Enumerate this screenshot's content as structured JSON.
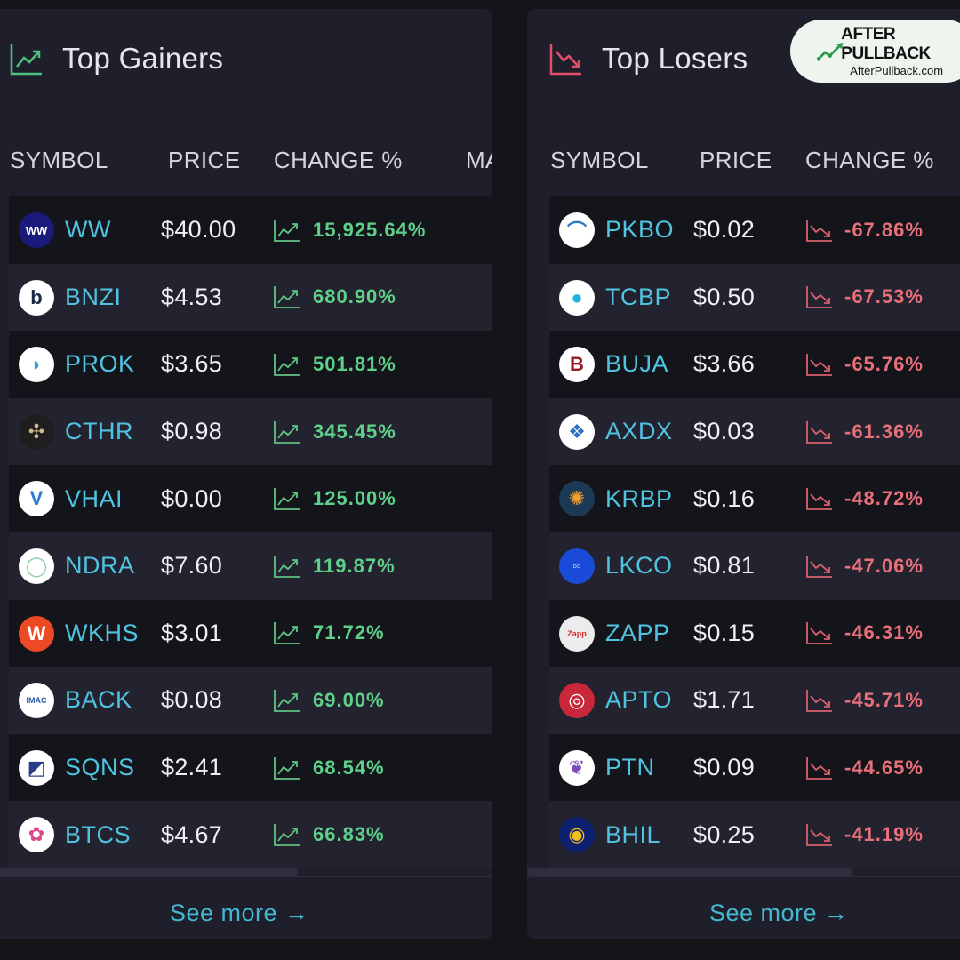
{
  "gainers": {
    "title": "Top Gainers",
    "columns": {
      "symbol": "SYMBOL",
      "price": "PRICE",
      "change": "CHANGE %",
      "market": "MA"
    },
    "rows": [
      {
        "symbol": "WW",
        "price": "$40.00",
        "change": "15,925.64%",
        "logo": "WW",
        "logo_bg": "#1a1a7a",
        "logo_fg": "#ffffff"
      },
      {
        "symbol": "BNZI",
        "price": "$4.53",
        "change": "680.90%",
        "logo": "b",
        "logo_bg": "#ffffff",
        "logo_fg": "#1c2a4a"
      },
      {
        "symbol": "PROK",
        "price": "$3.65",
        "change": "501.81%",
        "logo": "◗",
        "logo_bg": "#ffffff",
        "logo_fg": "#3a9bd5"
      },
      {
        "symbol": "CTHR",
        "price": "$0.98",
        "change": "345.45%",
        "logo": "✣",
        "logo_bg": "#1e1e1e",
        "logo_fg": "#c9b88a"
      },
      {
        "symbol": "VHAI",
        "price": "$0.00",
        "change": "125.00%",
        "logo": "V",
        "logo_bg": "#ffffff",
        "logo_fg": "#2a7fd4"
      },
      {
        "symbol": "NDRA",
        "price": "$7.60",
        "change": "119.87%",
        "logo": "◯",
        "logo_bg": "#ffffff",
        "logo_fg": "#8fcfa8"
      },
      {
        "symbol": "WKHS",
        "price": "$3.01",
        "change": "71.72%",
        "logo": "W",
        "logo_bg": "#ec4a25",
        "logo_fg": "#ffffff"
      },
      {
        "symbol": "BACK",
        "price": "$0.08",
        "change": "69.00%",
        "logo": "IMAC",
        "logo_bg": "#ffffff",
        "logo_fg": "#2a5aa8"
      },
      {
        "symbol": "SQNS",
        "price": "$2.41",
        "change": "68.54%",
        "logo": "◩",
        "logo_bg": "#ffffff",
        "logo_fg": "#2a3d8a"
      },
      {
        "symbol": "BTCS",
        "price": "$4.67",
        "change": "66.83%",
        "logo": "✿",
        "logo_bg": "#ffffff",
        "logo_fg": "#d84a8a"
      }
    ],
    "see_more": "See more →"
  },
  "losers": {
    "title": "Top Losers",
    "columns": {
      "symbol": "SYMBOL",
      "price": "PRICE",
      "change": "CHANGE %"
    },
    "rows": [
      {
        "symbol": "PKBO",
        "price": "$0.02",
        "change": "-67.86%",
        "logo": "⌒",
        "logo_bg": "#ffffff",
        "logo_fg": "#2a78c8"
      },
      {
        "symbol": "TCBP",
        "price": "$0.50",
        "change": "-67.53%",
        "logo": "●",
        "logo_bg": "#ffffff",
        "logo_fg": "#1fb4d8"
      },
      {
        "symbol": "BUJA",
        "price": "$3.66",
        "change": "-65.76%",
        "logo": "B",
        "logo_bg": "#ffffff",
        "logo_fg": "#9a1a2a"
      },
      {
        "symbol": "AXDX",
        "price": "$0.03",
        "change": "-61.36%",
        "logo": "❖",
        "logo_bg": "#ffffff",
        "logo_fg": "#2a70c0"
      },
      {
        "symbol": "KRBP",
        "price": "$0.16",
        "change": "-48.72%",
        "logo": "✺",
        "logo_bg": "#1c3a55",
        "logo_fg": "#f0a030"
      },
      {
        "symbol": "LKCO",
        "price": "$0.81",
        "change": "-47.06%",
        "logo": "▫▫",
        "logo_bg": "#1a4ad8",
        "logo_fg": "#ffffff"
      },
      {
        "symbol": "ZAPP",
        "price": "$0.15",
        "change": "-46.31%",
        "logo": "Zapp",
        "logo_bg": "#ececec",
        "logo_fg": "#d8282a"
      },
      {
        "symbol": "APTO",
        "price": "$1.71",
        "change": "-45.71%",
        "logo": "◎",
        "logo_bg": "#c8283a",
        "logo_fg": "#ffffff"
      },
      {
        "symbol": "PTN",
        "price": "$0.09",
        "change": "-44.65%",
        "logo": "❦",
        "logo_bg": "#ffffff",
        "logo_fg": "#7a4ab8"
      },
      {
        "symbol": "BHIL",
        "price": "$0.25",
        "change": "-41.19%",
        "logo": "◉",
        "logo_bg": "#0e2070",
        "logo_fg": "#f0c020"
      }
    ],
    "see_more": "See more →"
  },
  "badge": {
    "name": "AFTER PULLBACK",
    "url": "AfterPullback.com"
  },
  "colors": {
    "gain": "#5fd08a",
    "loss": "#e8707a",
    "symbol": "#4fc3e0",
    "link": "#43b8cf"
  },
  "icons": {
    "gainers_header": "trending-up-icon",
    "losers_header": "trending-down-icon"
  }
}
